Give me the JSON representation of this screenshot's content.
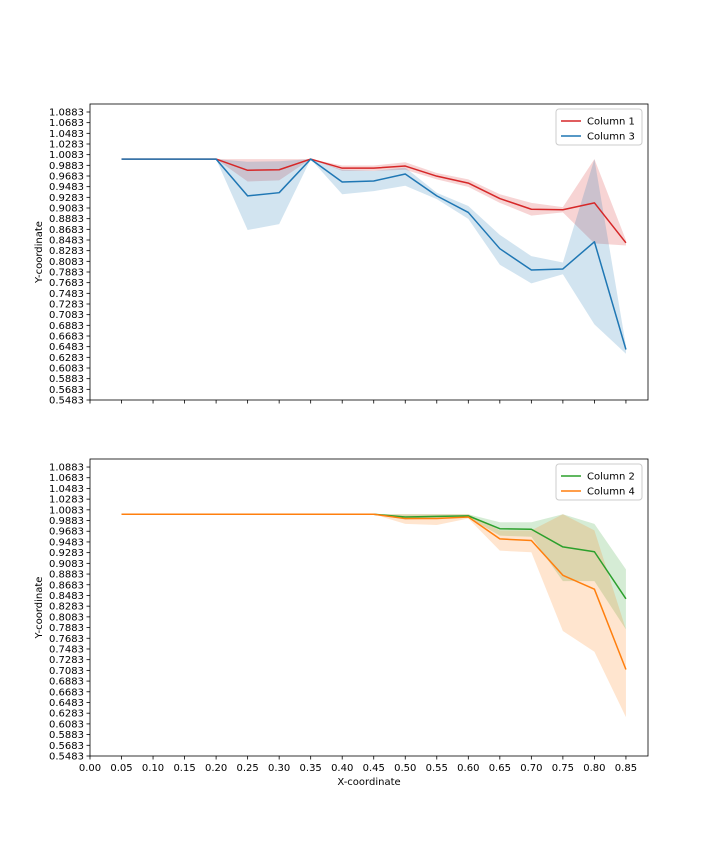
{
  "chart_data": [
    {
      "type": "line",
      "title": "",
      "xlabel": "",
      "ylabel": "Y-coordinate",
      "xlim": [
        0.0,
        0.885
      ],
      "ylim": [
        0.5483,
        1.1033
      ],
      "x_ticks": [
        "0.00",
        "0.05",
        "0.10",
        "0.15",
        "0.20",
        "0.25",
        "0.30",
        "0.35",
        "0.40",
        "0.45",
        "0.50",
        "0.55",
        "0.60",
        "0.65",
        "0.70",
        "0.75",
        "0.80",
        "0.85"
      ],
      "show_x_tick_labels": false,
      "y_ticks": [
        "0.5483",
        "0.5683",
        "0.5883",
        "0.6083",
        "0.6283",
        "0.6483",
        "0.6683",
        "0.6883",
        "0.7083",
        "0.7283",
        "0.7483",
        "0.7683",
        "0.7883",
        "0.8083",
        "0.8283",
        "0.8483",
        "0.8683",
        "0.8883",
        "0.9083",
        "0.9283",
        "0.9483",
        "0.9683",
        "0.9883",
        "1.0083",
        "1.0283",
        "1.0483",
        "1.0683",
        "1.0883"
      ],
      "grid": false,
      "legend": "top-right",
      "x": [
        0.05,
        0.1,
        0.15,
        0.2,
        0.25,
        0.3,
        0.35,
        0.4,
        0.45,
        0.5,
        0.55,
        0.6,
        0.65,
        0.7,
        0.75,
        0.8,
        0.85
      ],
      "series": [
        {
          "name": "Column 1",
          "color": "#d62728",
          "values": [
            1.0,
            1.0,
            1.0,
            1.0,
            0.979,
            0.98,
            1.0,
            0.983,
            0.983,
            0.987,
            0.968,
            0.955,
            0.926,
            0.906,
            0.905,
            0.918,
            0.843
          ],
          "lower": [
            1.0,
            1.0,
            1.0,
            1.0,
            0.958,
            0.96,
            1.0,
            0.978,
            0.978,
            0.98,
            0.962,
            0.948,
            0.918,
            0.894,
            0.9,
            0.842,
            0.838
          ],
          "upper": [
            1.0,
            1.0,
            1.0,
            1.0,
            1.0,
            1.0,
            1.0,
            0.988,
            0.988,
            0.994,
            0.974,
            0.962,
            0.934,
            0.918,
            0.91,
            1.0,
            0.848
          ]
        },
        {
          "name": "Column 3",
          "color": "#1f77b4",
          "values": [
            1.0,
            1.0,
            1.0,
            1.0,
            0.931,
            0.937,
            1.0,
            0.957,
            0.959,
            0.972,
            0.931,
            0.9,
            0.832,
            0.792,
            0.794,
            0.845,
            0.643
          ],
          "lower": [
            1.0,
            1.0,
            1.0,
            1.0,
            0.867,
            0.878,
            1.0,
            0.934,
            0.94,
            0.95,
            0.925,
            0.888,
            0.802,
            0.767,
            0.784,
            0.69,
            0.635
          ],
          "upper": [
            1.0,
            1.0,
            1.0,
            1.0,
            0.995,
            0.996,
            1.0,
            0.98,
            0.978,
            0.984,
            0.937,
            0.912,
            0.858,
            0.818,
            0.806,
            1.0,
            0.65
          ]
        }
      ]
    },
    {
      "type": "line",
      "title": "",
      "xlabel": "X-coordinate",
      "ylabel": "Y-coordinate",
      "xlim": [
        0.0,
        0.885
      ],
      "ylim": [
        0.5483,
        1.1033
      ],
      "x_ticks": [
        "0.00",
        "0.05",
        "0.10",
        "0.15",
        "0.20",
        "0.25",
        "0.30",
        "0.35",
        "0.40",
        "0.45",
        "0.50",
        "0.55",
        "0.60",
        "0.65",
        "0.70",
        "0.75",
        "0.80",
        "0.85"
      ],
      "show_x_tick_labels": true,
      "y_ticks": [
        "0.5483",
        "0.5683",
        "0.5883",
        "0.6083",
        "0.6283",
        "0.6483",
        "0.6683",
        "0.6883",
        "0.7083",
        "0.7283",
        "0.7483",
        "0.7683",
        "0.7883",
        "0.8083",
        "0.8283",
        "0.8483",
        "0.8683",
        "0.8883",
        "0.9083",
        "0.9283",
        "0.9483",
        "0.9683",
        "0.9883",
        "1.0083",
        "1.0283",
        "1.0483",
        "1.0683",
        "1.0883"
      ],
      "grid": false,
      "legend": "top-right",
      "x": [
        0.05,
        0.1,
        0.15,
        0.2,
        0.25,
        0.3,
        0.35,
        0.4,
        0.45,
        0.5,
        0.55,
        0.6,
        0.65,
        0.7,
        0.75,
        0.8,
        0.85
      ],
      "series": [
        {
          "name": "Column 2",
          "color": "#2ca02c",
          "values": [
            1.0,
            1.0,
            1.0,
            1.0,
            1.0,
            1.0,
            1.0,
            1.0,
            1.0,
            0.995,
            0.996,
            0.997,
            0.973,
            0.972,
            0.939,
            0.93,
            0.842
          ],
          "lower": [
            1.0,
            1.0,
            1.0,
            1.0,
            1.0,
            1.0,
            1.0,
            1.0,
            1.0,
            0.99,
            0.992,
            0.994,
            0.96,
            0.958,
            0.875,
            0.875,
            0.785
          ],
          "upper": [
            1.0,
            1.0,
            1.0,
            1.0,
            1.0,
            1.0,
            1.0,
            1.0,
            1.0,
            1.0,
            1.0,
            1.0,
            0.985,
            0.985,
            1.0,
            0.982,
            0.897
          ]
        },
        {
          "name": "Column 4",
          "color": "#ff7f0e",
          "values": [
            1.0,
            1.0,
            1.0,
            1.0,
            1.0,
            1.0,
            1.0,
            1.0,
            1.0,
            0.992,
            0.992,
            0.995,
            0.954,
            0.951,
            0.886,
            0.86,
            0.71
          ],
          "lower": [
            1.0,
            1.0,
            1.0,
            1.0,
            1.0,
            1.0,
            1.0,
            1.0,
            1.0,
            0.982,
            0.98,
            0.992,
            0.932,
            0.929,
            0.782,
            0.743,
            0.621
          ],
          "upper": [
            1.0,
            1.0,
            1.0,
            1.0,
            1.0,
            1.0,
            1.0,
            1.0,
            1.0,
            1.0,
            1.0,
            1.0,
            0.97,
            0.97,
            1.0,
            0.97,
            0.785
          ]
        }
      ]
    }
  ]
}
